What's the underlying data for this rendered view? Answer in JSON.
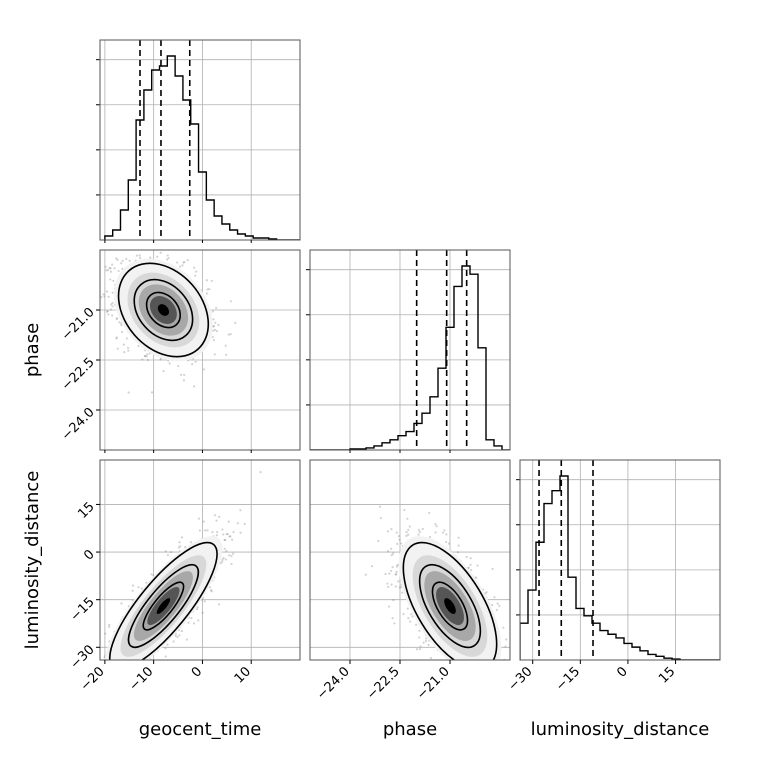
{
  "chart_data": {
    "type": "corner",
    "parameters": [
      "geocent_time",
      "phase",
      "luminosity_distance"
    ],
    "grid": true,
    "colors": {
      "hist": "#000000",
      "contour": "#000000",
      "points": "#7f7f7f",
      "grid": "#b0b0b0"
    },
    "ranges": {
      "geocent_time": [
        -21,
        20
      ],
      "phase": [
        -25.2,
        -19.2
      ],
      "luminosity_distance": [
        -34,
        29
      ]
    },
    "ticks": {
      "geocent_time": [
        -20,
        -10,
        0,
        10
      ],
      "phase": [
        -24.0,
        -22.5,
        -21.0
      ],
      "luminosity_distance": [
        -30,
        -15,
        0,
        15
      ]
    },
    "tick_labels": {
      "geocent_time": [
        "−20",
        "−10",
        "0",
        "10"
      ],
      "phase": [
        "−24.0",
        "−22.5",
        "−21.0"
      ],
      "luminosity_distance": [
        "−30",
        "−15",
        "0",
        "15"
      ]
    },
    "quantiles": {
      "geocent_time": [
        -12.8,
        -8.5,
        -2.6
      ],
      "phase": [
        -22.0,
        -21.1,
        -20.5
      ],
      "luminosity_distance": [
        -28,
        -21,
        -11
      ]
    },
    "histograms": {
      "geocent_time": {
        "bin_edges": [
          -20,
          -18.4,
          -16.8,
          -15.2,
          -13.6,
          -12,
          -10.4,
          -8.8,
          -7.2,
          -5.6,
          -4,
          -2.4,
          -0.8,
          0.8,
          2.4,
          4,
          5.6,
          7.2,
          8.8,
          10.4,
          12,
          13.6,
          15.2,
          16.8,
          18.4,
          20
        ],
        "counts": [
          0.02,
          0.05,
          0.15,
          0.3,
          0.6,
          0.75,
          0.85,
          0.87,
          0.92,
          0.82,
          0.7,
          0.58,
          0.34,
          0.2,
          0.12,
          0.08,
          0.05,
          0.03,
          0.02,
          0.01,
          0.01,
          0.005,
          0.0,
          0.0,
          0.0
        ]
      },
      "phase": {
        "bin_edges": [
          -25.2,
          -24.96,
          -24.72,
          -24.48,
          -24.24,
          -24.0,
          -23.76,
          -23.52,
          -23.28,
          -23.04,
          -22.8,
          -22.56,
          -22.32,
          -22.08,
          -21.84,
          -21.6,
          -21.36,
          -21.12,
          -20.88,
          -20.64,
          -20.4,
          -20.16,
          -19.92,
          -19.68,
          -19.44,
          -19.2
        ],
        "counts": [
          0.0,
          0.0,
          0.0,
          0.0,
          0.0,
          0.005,
          0.005,
          0.01,
          0.02,
          0.035,
          0.05,
          0.07,
          0.09,
          0.13,
          0.18,
          0.26,
          0.4,
          0.6,
          0.8,
          0.9,
          0.86,
          0.5,
          0.05,
          0.02,
          0.0
        ]
      },
      "luminosity_distance": {
        "bin_edges": [
          -34,
          -31.48,
          -28.96,
          -26.44,
          -23.92,
          -21.4,
          -18.88,
          -16.36,
          -13.84,
          -11.32,
          -8.8,
          -6.28,
          -3.76,
          -1.24,
          1.28,
          3.8,
          6.32,
          8.84,
          11.36,
          13.88,
          16.4,
          18.92,
          21.44,
          23.96,
          26.48,
          29
        ],
        "counts": [
          0.2,
          0.38,
          0.64,
          0.85,
          0.92,
          1.0,
          0.45,
          0.28,
          0.24,
          0.2,
          0.16,
          0.14,
          0.12,
          0.09,
          0.07,
          0.05,
          0.03,
          0.02,
          0.01,
          0.005,
          0.0,
          0.0,
          0.0,
          0.0,
          0.0
        ]
      }
    },
    "pairs": [
      {
        "x": "geocent_time",
        "y": "phase",
        "mean": [
          -8,
          -21.0
        ],
        "std": [
          4.6,
          0.7
        ],
        "corr": -0.3
      },
      {
        "x": "geocent_time",
        "y": "luminosity_distance",
        "mean": [
          -8,
          -17
        ],
        "std": [
          5.5,
          10
        ],
        "corr": 0.82
      },
      {
        "x": "phase",
        "y": "luminosity_distance",
        "mean": [
          -21.0,
          -17
        ],
        "std": [
          0.7,
          10
        ],
        "corr": -0.6
      }
    ]
  }
}
